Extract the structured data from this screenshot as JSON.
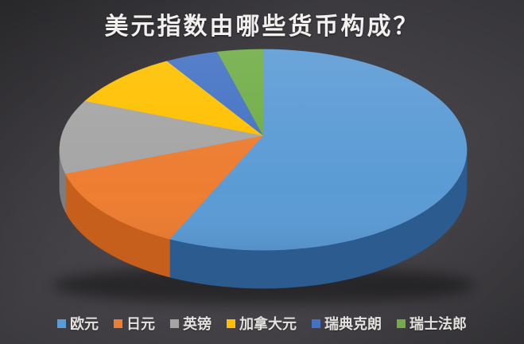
{
  "chart_data": {
    "type": "pie",
    "style": "3d",
    "title": "美元指数由哪些货币构成？",
    "legend_position": "bottom",
    "start_angle_deg": 0,
    "direction": "clockwise",
    "values_note": "no numeric data labels shown on chart; values estimated from slice angles",
    "slices": [
      {
        "key": "euro",
        "label": "欧元",
        "value": 57.6,
        "color": "#5B9BD5",
        "side_color": "#2C5C8F"
      },
      {
        "key": "japanese-yen",
        "label": "日元",
        "value": 13.6,
        "color": "#ED7D31",
        "side_color": "#C65E1C"
      },
      {
        "key": "british-pound",
        "label": "英镑",
        "value": 11.9,
        "color": "#A5A5A5",
        "side_color": "#7C7C7E"
      },
      {
        "key": "canadian-dollar",
        "label": "加拿大元",
        "value": 9.1,
        "color": "#FFC000",
        "side_color": "#BC8D00"
      },
      {
        "key": "swedish-krona",
        "label": "瑞典克朗",
        "value": 4.2,
        "color": "#4472C4",
        "side_color": "#2F4E87"
      },
      {
        "key": "swiss-franc",
        "label": "瑞士法郎",
        "value": 3.6,
        "color": "#70AD47",
        "side_color": "#4E7A31"
      }
    ],
    "colors": {
      "title_text": "#f2f1ef",
      "legend_text": "#e4e2df",
      "background_center": "#4b494d",
      "background_edge": "#2a2a2c",
      "shadow": "#000000"
    }
  }
}
